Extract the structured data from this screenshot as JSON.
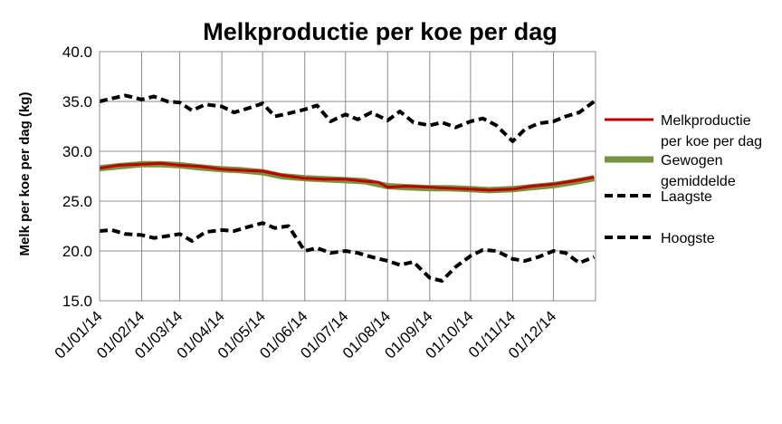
{
  "chart_data": {
    "type": "line",
    "title": "Melkproductie per koe per dag",
    "ylabel": "Melk per koe per dag (kg)",
    "xlabel": "",
    "ylim": [
      15.0,
      40.0
    ],
    "y_ticks": [
      "15.0",
      "20.0",
      "25.0",
      "30.0",
      "35.0",
      "40.0"
    ],
    "x_ticks": [
      "01/01/14",
      "01/02/14",
      "01/03/14",
      "01/04/14",
      "01/05/14",
      "01/06/14",
      "01/07/14",
      "01/08/14",
      "01/09/14",
      "01/10/14",
      "01/11/14",
      "01/12/14"
    ],
    "xlim": [
      "2014-01-01",
      "2014-12-31"
    ],
    "grid": true,
    "legend_position": "right",
    "series": [
      {
        "name": "Melkproductie per koe per dag",
        "color": "#c00000",
        "style": "solid",
        "points": [
          [
            "2014-01-01",
            28.3
          ],
          [
            "2014-01-15",
            28.6
          ],
          [
            "2014-02-01",
            28.7
          ],
          [
            "2014-02-15",
            28.8
          ],
          [
            "2014-03-01",
            28.6
          ],
          [
            "2014-03-15",
            28.5
          ],
          [
            "2014-04-01",
            28.2
          ],
          [
            "2014-04-15",
            28.1
          ],
          [
            "2014-05-01",
            28.0
          ],
          [
            "2014-05-15",
            27.6
          ],
          [
            "2014-06-01",
            27.3
          ],
          [
            "2014-06-15",
            27.2
          ],
          [
            "2014-07-01",
            27.2
          ],
          [
            "2014-07-15",
            27.0
          ],
          [
            "2014-07-25",
            26.9
          ],
          [
            "2014-08-01",
            26.4
          ],
          [
            "2014-08-15",
            26.5
          ],
          [
            "2014-09-01",
            26.4
          ],
          [
            "2014-09-15",
            26.3
          ],
          [
            "2014-10-01",
            26.2
          ],
          [
            "2014-10-15",
            26.1
          ],
          [
            "2014-11-01",
            26.2
          ],
          [
            "2014-11-15",
            26.5
          ],
          [
            "2014-12-01",
            26.7
          ],
          [
            "2014-12-15",
            27.0
          ],
          [
            "2014-12-31",
            27.4
          ]
        ]
      },
      {
        "name": "Gewogen gemiddelde",
        "color": "#77933c",
        "style": "solid",
        "points": [
          [
            "2014-01-01",
            28.3
          ],
          [
            "2014-01-15",
            28.5
          ],
          [
            "2014-02-01",
            28.7
          ],
          [
            "2014-02-15",
            28.7
          ],
          [
            "2014-03-01",
            28.6
          ],
          [
            "2014-03-15",
            28.4
          ],
          [
            "2014-04-01",
            28.2
          ],
          [
            "2014-04-15",
            28.1
          ],
          [
            "2014-05-01",
            27.9
          ],
          [
            "2014-05-15",
            27.5
          ],
          [
            "2014-06-01",
            27.3
          ],
          [
            "2014-06-15",
            27.2
          ],
          [
            "2014-07-01",
            27.1
          ],
          [
            "2014-07-15",
            27.0
          ],
          [
            "2014-08-01",
            26.5
          ],
          [
            "2014-08-15",
            26.4
          ],
          [
            "2014-09-01",
            26.3
          ],
          [
            "2014-09-15",
            26.3
          ],
          [
            "2014-10-01",
            26.2
          ],
          [
            "2014-10-15",
            26.1
          ],
          [
            "2014-11-01",
            26.2
          ],
          [
            "2014-11-15",
            26.4
          ],
          [
            "2014-12-01",
            26.6
          ],
          [
            "2014-12-15",
            26.9
          ],
          [
            "2014-12-31",
            27.3
          ]
        ]
      },
      {
        "name": "Laagste",
        "color": "#000000",
        "style": "dashed",
        "points": [
          [
            "2014-01-01",
            35.0
          ],
          [
            "2014-01-10",
            35.3
          ],
          [
            "2014-01-20",
            35.6
          ],
          [
            "2014-02-01",
            35.2
          ],
          [
            "2014-02-10",
            35.5
          ],
          [
            "2014-02-20",
            35.0
          ],
          [
            "2014-03-01",
            34.9
          ],
          [
            "2014-03-10",
            34.1
          ],
          [
            "2014-03-20",
            34.7
          ],
          [
            "2014-04-01",
            34.5
          ],
          [
            "2014-04-10",
            33.9
          ],
          [
            "2014-04-20",
            34.3
          ],
          [
            "2014-05-01",
            34.8
          ],
          [
            "2014-05-10",
            33.5
          ],
          [
            "2014-05-20",
            33.8
          ],
          [
            "2014-06-01",
            34.2
          ],
          [
            "2014-06-10",
            34.6
          ],
          [
            "2014-06-20",
            33.0
          ],
          [
            "2014-07-01",
            33.7
          ],
          [
            "2014-07-10",
            33.2
          ],
          [
            "2014-07-20",
            33.9
          ],
          [
            "2014-08-01",
            33.1
          ],
          [
            "2014-08-10",
            34.0
          ],
          [
            "2014-08-20",
            32.9
          ],
          [
            "2014-09-01",
            32.6
          ],
          [
            "2014-09-10",
            32.9
          ],
          [
            "2014-09-20",
            32.4
          ],
          [
            "2014-10-01",
            33.0
          ],
          [
            "2014-10-10",
            33.3
          ],
          [
            "2014-10-20",
            32.6
          ],
          [
            "2014-11-01",
            31.0
          ],
          [
            "2014-11-10",
            32.2
          ],
          [
            "2014-11-20",
            32.8
          ],
          [
            "2014-12-01",
            33.0
          ],
          [
            "2014-12-10",
            33.5
          ],
          [
            "2014-12-20",
            33.9
          ],
          [
            "2014-12-31",
            35.0
          ]
        ]
      },
      {
        "name": "Hoogste",
        "color": "#000000",
        "style": "dashed",
        "points": [
          [
            "2014-01-01",
            22.0
          ],
          [
            "2014-01-10",
            22.1
          ],
          [
            "2014-01-20",
            21.7
          ],
          [
            "2014-02-01",
            21.6
          ],
          [
            "2014-02-10",
            21.3
          ],
          [
            "2014-02-20",
            21.5
          ],
          [
            "2014-03-01",
            21.7
          ],
          [
            "2014-03-10",
            21.0
          ],
          [
            "2014-03-20",
            21.9
          ],
          [
            "2014-04-01",
            22.1
          ],
          [
            "2014-04-10",
            22.0
          ],
          [
            "2014-04-20",
            22.4
          ],
          [
            "2014-05-01",
            22.8
          ],
          [
            "2014-05-10",
            22.3
          ],
          [
            "2014-05-20",
            22.5
          ],
          [
            "2014-06-01",
            20.0
          ],
          [
            "2014-06-10",
            20.3
          ],
          [
            "2014-06-20",
            19.8
          ],
          [
            "2014-07-01",
            20.0
          ],
          [
            "2014-07-10",
            19.8
          ],
          [
            "2014-07-20",
            19.4
          ],
          [
            "2014-08-01",
            19.0
          ],
          [
            "2014-08-10",
            18.6
          ],
          [
            "2014-08-20",
            18.9
          ],
          [
            "2014-09-01",
            17.3
          ],
          [
            "2014-09-10",
            17.0
          ],
          [
            "2014-09-20",
            18.4
          ],
          [
            "2014-10-01",
            19.5
          ],
          [
            "2014-10-10",
            20.1
          ],
          [
            "2014-10-20",
            20.0
          ],
          [
            "2014-11-01",
            19.2
          ],
          [
            "2014-11-10",
            19.0
          ],
          [
            "2014-11-20",
            19.4
          ],
          [
            "2014-12-01",
            20.0
          ],
          [
            "2014-12-10",
            19.8
          ],
          [
            "2014-12-20",
            18.8
          ],
          [
            "2014-12-31",
            19.4
          ]
        ]
      }
    ]
  }
}
